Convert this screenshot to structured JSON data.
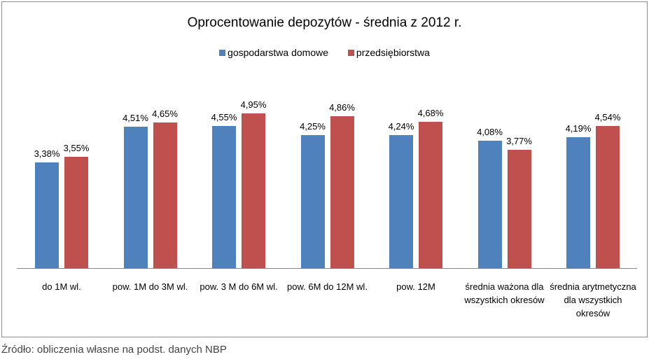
{
  "chart_data": {
    "type": "bar",
    "title": "Oprocentowanie depozytów - średnia z 2012 r.",
    "categories": [
      "do 1M wl.",
      "pow. 1M do 3M wl.",
      "pow. 3 M do 6M wl.",
      "pow. 6M do 12M wl.",
      "pow. 12M",
      "średnia ważona dla wszystkich okresów",
      "średnia arytmetyczna dla wszystkich okresów"
    ],
    "series": [
      {
        "name": "gospodarstwa domowe",
        "color": "#4f81bd",
        "values": [
          3.38,
          4.51,
          4.55,
          4.25,
          4.24,
          4.08,
          4.19
        ],
        "labels": [
          "3,38%",
          "4,51%",
          "4,55%",
          "4,25%",
          "4,24%",
          "4,08%",
          "4,19%"
        ]
      },
      {
        "name": "przedsiębiorstwa",
        "color": "#c0504d",
        "values": [
          3.55,
          4.65,
          4.95,
          4.86,
          4.68,
          3.77,
          4.54
        ],
        "labels": [
          "3,55%",
          "4,65%",
          "4,95%",
          "4,86%",
          "4,68%",
          "3,77%",
          "4,54%"
        ]
      }
    ],
    "ylim": [
      0,
      6
    ],
    "legend": "top",
    "grid": false
  },
  "source": "Źródło: obliczenia własne na podst. danych NBP"
}
